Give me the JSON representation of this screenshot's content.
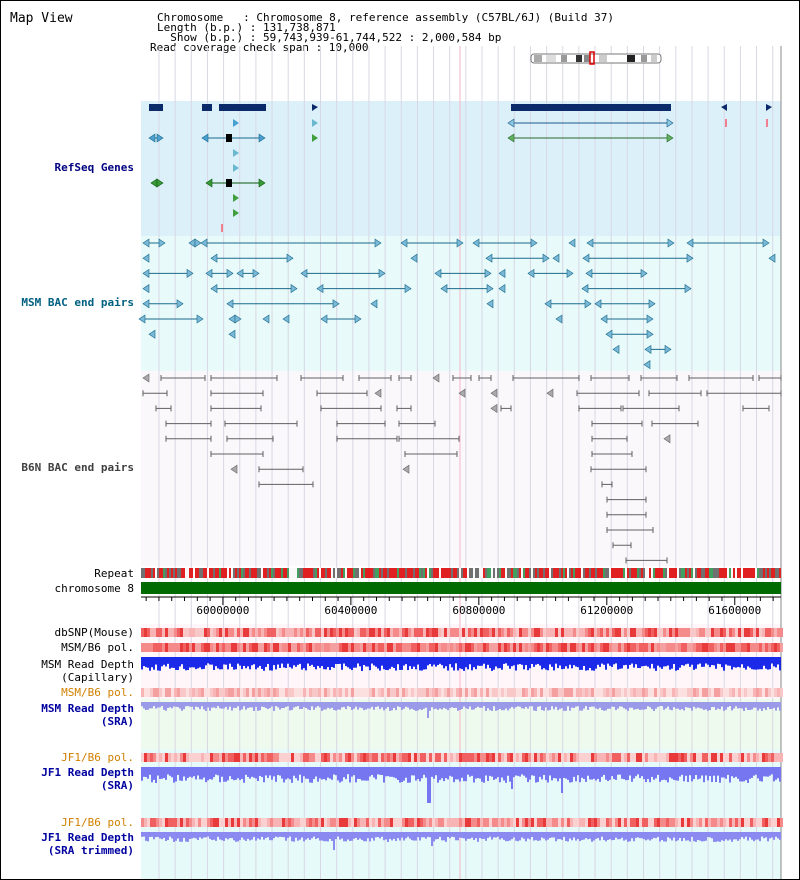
{
  "title": "Map View",
  "header": {
    "chromosome_line": "Chromosome   : Chromosome 8, reference assembly (C57BL/6J) (Build 37)",
    "length_line": "Length (b.p.) : 131,738,871",
    "show_line": "  Show (b.p.) : 59,743,939-61,744,522 : 2,000,584 bp",
    "coverage_line": "Read coverage check span : 10,000"
  },
  "tracks": {
    "refseq": "RefSeq Genes",
    "msm_bac": "MSM BAC end pairs",
    "b6n_bac": "B6N BAC end pairs",
    "repeat": "Repeat",
    "chromosome": "chromosome 8",
    "dbsnp": "dbSNP(Mouse)",
    "msm_b6_pol_1": "MSM/B6 pol.",
    "msm_read_depth_cap": "MSM Read Depth\n(Capillary)",
    "msm_b6_pol_2": "MSM/B6 pol.",
    "msm_read_depth_sra": "MSM Read Depth\n(SRA)",
    "jf1_b6_pol_1": "JF1/B6 pol.",
    "jf1_read_depth_sra": "JF1 Read Depth\n(SRA)",
    "jf1_b6_pol_2": "JF1/B6 pol.",
    "jf1_read_depth_trimmed": "JF1 Read Depth\n(SRA trimmed)"
  },
  "axis": {
    "ticks": [
      "60000000",
      "60400000",
      "60800000",
      "61200000",
      "61600000"
    ],
    "start_bp": 59743939,
    "end_bp": 61744522
  },
  "colors": {
    "refseq_label": "#000080",
    "msm_label": "#006080",
    "b6n_label": "#404040",
    "orange_label": "#d08000",
    "blue_label": "#0000a0",
    "refseq_bg": "#dcf0fa",
    "msm_bg": "#e8fafa",
    "gene_dark": "#0a2a6a",
    "msm_feature": "#1a6a8a",
    "b6n_feature": "#606060",
    "chrom_green": "#006b00"
  }
}
